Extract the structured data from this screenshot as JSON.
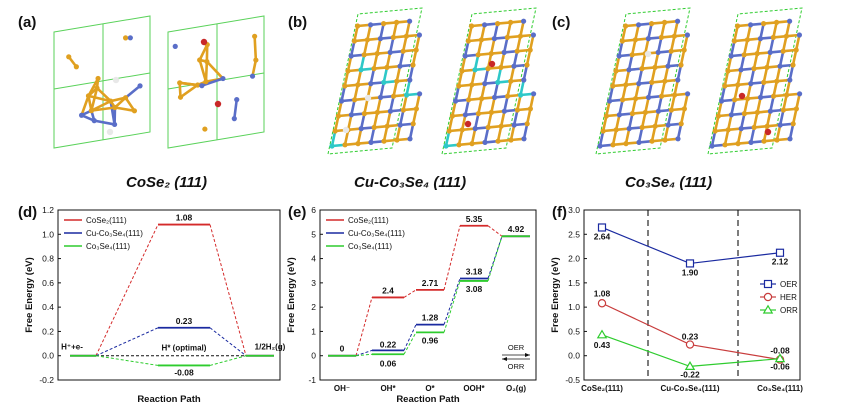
{
  "panels": {
    "a": {
      "label": "(a)",
      "caption": "CoSe₂ (111)"
    },
    "b": {
      "label": "(b)",
      "caption": "Cu-Co₃Se₄ (111)"
    },
    "c": {
      "label": "(c)",
      "caption": "Co₃Se₄ (111)"
    }
  },
  "colors": {
    "red": "#d42a2a",
    "blue": "#1a2aa0",
    "green": "#2ecc2e",
    "se": "#e0a020",
    "co": "#5a6ec8",
    "cu": "#2ec8c8",
    "o": "#c82828"
  },
  "chart_data": [
    {
      "id": "d",
      "panel_label": "(d)",
      "type": "line",
      "ylabel": "Free Energy (eV)",
      "xlabel": "Reaction Path",
      "ylim": [
        -0.2,
        1.2
      ],
      "yticks": [
        "-0.2",
        "0.0",
        "0.2",
        "0.4",
        "0.6",
        "0.8",
        "1.0",
        "1.2"
      ],
      "steps": [
        "H⁺+e-",
        "H*",
        "1/2H₂(g)"
      ],
      "annotation": "H* (optimal)",
      "legend_position": "top-left",
      "series": [
        {
          "name": "CoSe₂(111)",
          "color": "#d42a2a",
          "values": [
            0,
            1.08,
            0
          ],
          "labels": [
            "",
            "1.08",
            ""
          ]
        },
        {
          "name": "Cu-Co₃Se₄(111)",
          "color": "#1a2aa0",
          "values": [
            0,
            0.23,
            0
          ],
          "labels": [
            "",
            "0.23",
            ""
          ]
        },
        {
          "name": "Co₃Se₄(111)",
          "color": "#2ecc2e",
          "values": [
            0,
            -0.08,
            0
          ],
          "labels": [
            "",
            "-0.08",
            ""
          ]
        }
      ],
      "reference": {
        "value": 0,
        "color": "#111111"
      }
    },
    {
      "id": "e",
      "panel_label": "(e)",
      "type": "line",
      "ylabel": "Free Energy (eV)",
      "xlabel": "Reaction Path",
      "ylim": [
        -1,
        6
      ],
      "yticks": [
        "-1",
        "0",
        "1",
        "2",
        "3",
        "4",
        "5",
        "6"
      ],
      "categories": [
        "OH⁻",
        "OH*",
        "O*",
        "OOH*",
        "O₂(g)"
      ],
      "arrow_labels": {
        "top": "OER",
        "bottom": "ORR"
      },
      "legend_position": "top-left",
      "series": [
        {
          "name": "CoSe₂(111)",
          "color": "#d42a2a",
          "values": [
            0,
            2.4,
            2.71,
            5.35,
            4.92
          ],
          "labels": [
            "0",
            "2.4",
            "2.71",
            "5.35",
            "4.92"
          ]
        },
        {
          "name": "Cu-Co₃Se₄(111)",
          "color": "#1a2aa0",
          "values": [
            0,
            0.22,
            1.28,
            3.18,
            4.92
          ],
          "labels": [
            "",
            "0.22",
            "1.28",
            "3.18",
            ""
          ]
        },
        {
          "name": "Co₃Se₄(111)",
          "color": "#2ecc2e",
          "values": [
            0,
            0.06,
            0.96,
            3.08,
            4.92
          ],
          "labels": [
            "",
            "0.06",
            "0.96",
            "3.08",
            ""
          ]
        }
      ]
    },
    {
      "id": "f",
      "panel_label": "(f)",
      "type": "line",
      "ylabel": "Free Energy (eV)",
      "ylim": [
        -0.5,
        3.0
      ],
      "yticks": [
        "-0.5",
        "0.0",
        "0.5",
        "1.0",
        "1.5",
        "2.0",
        "2.5",
        "3.0"
      ],
      "categories": [
        "CoSe₂(111)",
        "Cu-Co₃Se₄(111)",
        "Co₃Se₄(111)"
      ],
      "legend_position": "right",
      "series": [
        {
          "name": "OER",
          "color": "#1a2aa0",
          "marker": "square",
          "values": [
            2.64,
            1.9,
            2.12
          ],
          "labels": [
            "2.64",
            "1.90",
            "2.12"
          ]
        },
        {
          "name": "HER",
          "color": "#c83c3c",
          "marker": "circle",
          "values": [
            1.08,
            0.23,
            -0.08
          ],
          "labels": [
            "1.08",
            "0.23",
            "-0.08"
          ]
        },
        {
          "name": "ORR",
          "color": "#2ecc2e",
          "marker": "triangle",
          "values": [
            0.43,
            -0.22,
            -0.06
          ],
          "labels": [
            "0.43",
            "-0.22",
            "-0.06"
          ]
        }
      ]
    }
  ]
}
